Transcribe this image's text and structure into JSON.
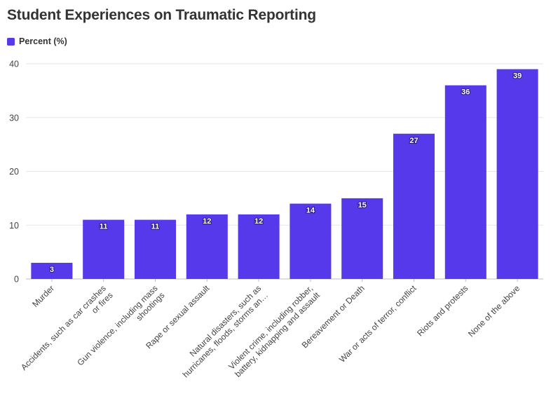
{
  "colors": {
    "bar": "#5539ea",
    "grid": "#e6e6e6",
    "axis": "#bdbdbd"
  },
  "chart_data": {
    "type": "bar",
    "title": "Student Experiences on Traumatic Reporting",
    "legend": {
      "position": "top-left",
      "entries": [
        "Percent (%)"
      ]
    },
    "xlabel": "",
    "ylabel": "",
    "ylim": [
      0,
      40
    ],
    "yticks": [
      0,
      10,
      20,
      30,
      40
    ],
    "grid": true,
    "categories": [
      [
        "Murder"
      ],
      [
        "Accidents, such as car crashes",
        "or fires"
      ],
      [
        "Gun violence, including mass",
        "shootings"
      ],
      [
        "Rape or sexual assault"
      ],
      [
        "Natural disasters, such as",
        "hurricanes, floods, storms an…"
      ],
      [
        "Violent crime, including robber,",
        "battery, kidnapping and assault"
      ],
      [
        "Bereavement or Death"
      ],
      [
        "War or acts of terror, conflict"
      ],
      [
        "Riots and protests"
      ],
      [
        "None of the above"
      ]
    ],
    "series": [
      {
        "name": "Percent (%)",
        "values": [
          3,
          11,
          11,
          12,
          12,
          14,
          15,
          27,
          36,
          39
        ]
      }
    ]
  }
}
